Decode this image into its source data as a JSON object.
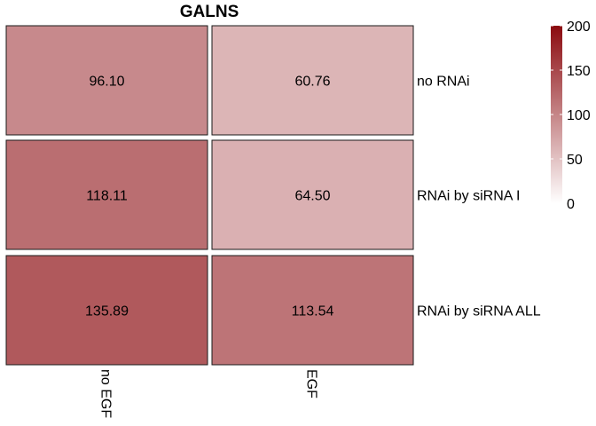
{
  "chart_data": {
    "type": "heatmap",
    "title": "GALNS",
    "columns": [
      "no EGF",
      "EGF"
    ],
    "rows": [
      "no RNAi",
      "RNAi by siRNA I",
      "RNAi by siRNA ALL"
    ],
    "values": [
      [
        96.1,
        60.76
      ],
      [
        118.11,
        64.5
      ],
      [
        135.89,
        113.54
      ]
    ],
    "value_labels": [
      [
        "96.10",
        "60.76"
      ],
      [
        "118.11",
        "64.50"
      ],
      [
        "135.89",
        "113.54"
      ]
    ],
    "colorbar": {
      "range": [
        0,
        200
      ],
      "ticks": [
        "0",
        "50",
        "100",
        "150",
        "200"
      ],
      "low_color": "#ffffff",
      "high_color": "#8b0a0f"
    },
    "legend_placement": "top-right"
  }
}
